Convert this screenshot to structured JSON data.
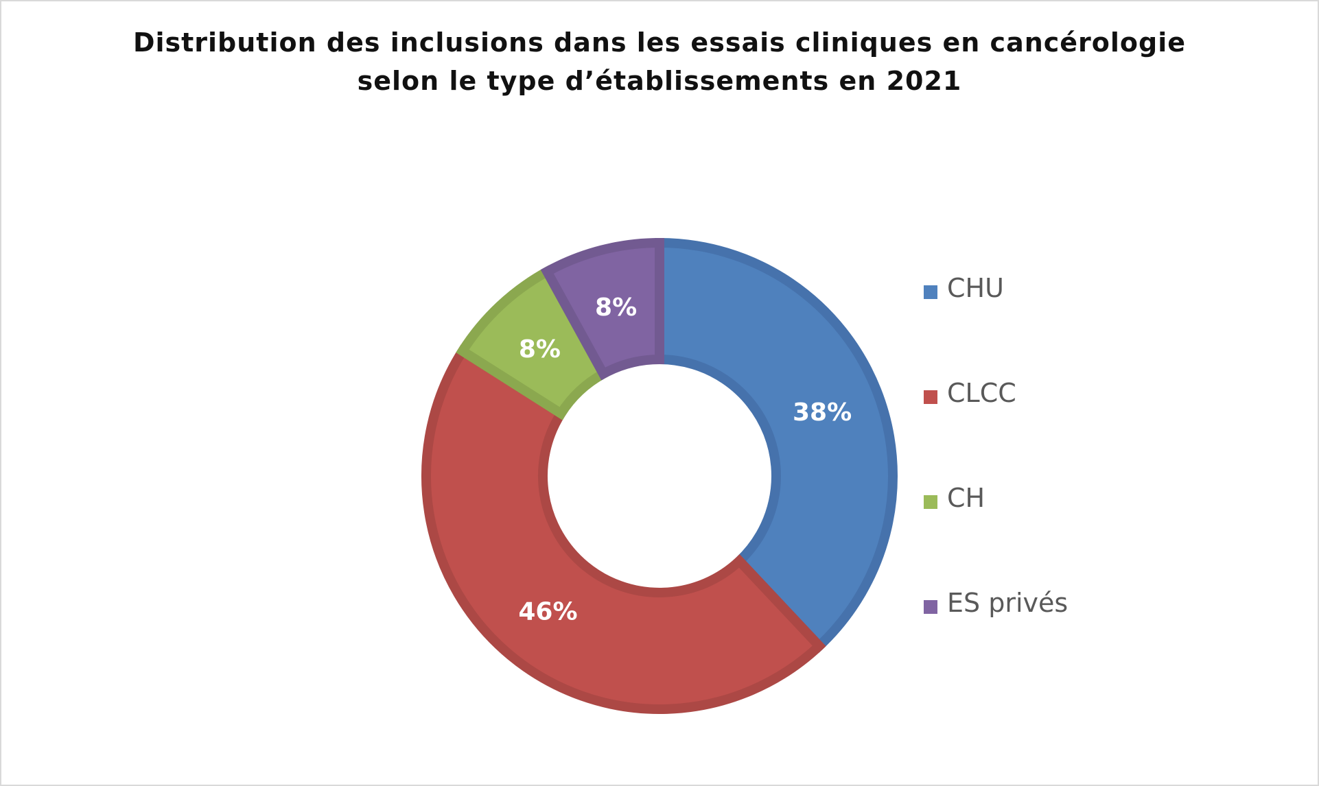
{
  "chart_data": {
    "type": "pie",
    "style": "donut",
    "title": [
      "Distribution des inclusions dans les essais cliniques en cancérologie",
      "selon le type d’établissements en 2021"
    ],
    "categories": [
      "CHU",
      "CLCC",
      "CH",
      "ES privés"
    ],
    "values": [
      38,
      46,
      8,
      8
    ],
    "data_labels": [
      "38%",
      "46%",
      "8%",
      "8%"
    ],
    "colors": [
      "#4F81BD",
      "#C0504D",
      "#9BBB59",
      "#8064A2"
    ],
    "border_colors": [
      "#4672AC",
      "#AC4845",
      "#8BA84F",
      "#725A91"
    ],
    "legend_position": "right"
  }
}
